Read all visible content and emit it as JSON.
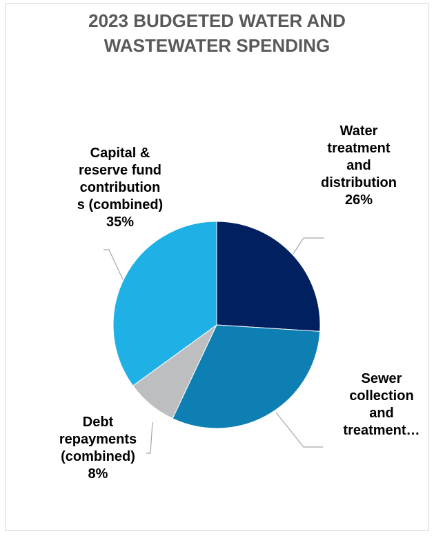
{
  "chart_data": {
    "type": "pie",
    "title": [
      "2023 BUDGETED WATER AND",
      "WASTEWATER SPENDING"
    ],
    "slices": [
      {
        "label": [
          "Water",
          "treatment",
          "and",
          "distribution"
        ],
        "value": 26,
        "value_label": "26%",
        "color": "#002060"
      },
      {
        "label": [
          "Sewer",
          "collection",
          "and",
          "treatment…"
        ],
        "value": 31,
        "value_label": "",
        "color": "#0e7fb2"
      },
      {
        "label": [
          "Debt",
          "repayments",
          "(combined)"
        ],
        "value": 8,
        "value_label": "8%",
        "color": "#bcbec0"
      },
      {
        "label": [
          "Capital &",
          "reserve fund",
          "contribution",
          "s (combined)"
        ],
        "value": 35,
        "value_label": "35%",
        "color": "#1fb0e6"
      }
    ],
    "legend": "none"
  }
}
